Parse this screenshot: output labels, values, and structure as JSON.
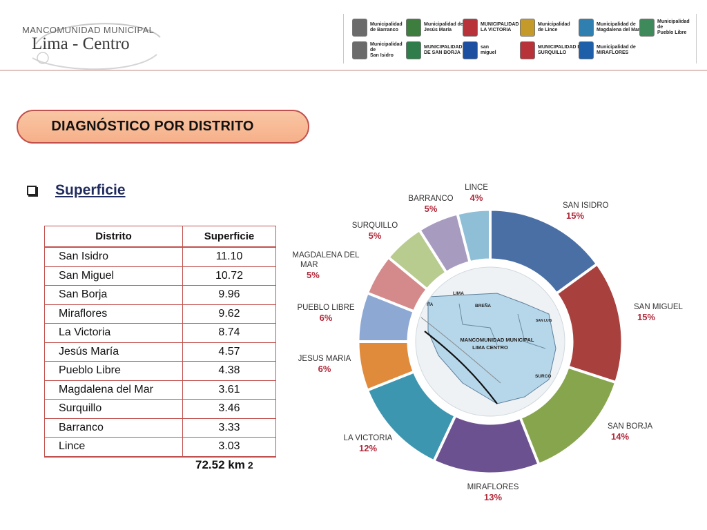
{
  "header": {
    "org_line": "MANCOMUNIDAD MUNICIPAL",
    "city_line": "Lima - Centro",
    "municipalities": [
      {
        "text": "Municipalidad\nde Barranco",
        "color": "#6b6b6b"
      },
      {
        "text": "Municipalidad de\nJesús María",
        "color": "#3d7d3d"
      },
      {
        "text": "MUNICIPALIDAD DE\nLA VICTORIA",
        "color": "#b8323a"
      },
      {
        "text": "Municipalidad\nde Lince",
        "color": "#c49a2a"
      },
      {
        "text": "Municipalidad de\nMagdalena del Mar",
        "color": "#2f7fb0"
      },
      {
        "text": "Municipalidad de\nPueblo Libre",
        "color": "#3f8a5a"
      },
      {
        "text": "Municipalidad\nde\nSan Isidro",
        "color": "#6b6b6b"
      },
      {
        "text": "MUNICIPALIDAD\nDE SAN BORJA",
        "color": "#2e7d4a"
      },
      {
        "text": "san\nmiguel",
        "color": "#1d4fa0"
      },
      {
        "text": "MUNICIPALIDAD DE\nSURQUILLO",
        "color": "#b8323a"
      },
      {
        "text": "Municipalidad de\nMIRAFLORES",
        "color": "#1d5fa8"
      }
    ]
  },
  "section_heading": "DIAGNÓSTICO POR DISTRITO",
  "subsection_title": "Superficie",
  "table": {
    "headers": [
      "Distrito",
      "Superficie"
    ],
    "rows": [
      {
        "name": "San Isidro",
        "value": "11.10"
      },
      {
        "name": "San Miguel",
        "value": "10.72"
      },
      {
        "name": "San Borja",
        "value": "9.96"
      },
      {
        "name": "Miraflores",
        "value": "9.62"
      },
      {
        "name": "La Victoria",
        "value": "8.74"
      },
      {
        "name": "Jesús María",
        "value": "4.57"
      },
      {
        "name": "Pueblo Libre",
        "value": "4.38"
      },
      {
        "name": "Magdalena del Mar",
        "value": "3.61"
      },
      {
        "name": "Surquillo",
        "value": "3.46"
      },
      {
        "name": "Barranco",
        "value": "3.33"
      },
      {
        "name": "Lince",
        "value": "3.03"
      }
    ],
    "total_value": "72.52 km",
    "total_exp": "2"
  },
  "chart_data": {
    "type": "pie",
    "style": "exploded donut",
    "slices": [
      {
        "label": "SAN ISIDRO",
        "pct": "15%",
        "value": 15,
        "color": "#4a6fa5"
      },
      {
        "label": "SAN MIGUEL",
        "pct": "15%",
        "value": 15,
        "color": "#a8413e"
      },
      {
        "label": "SAN BORJA",
        "pct": "14%",
        "value": 14,
        "color": "#86a54c"
      },
      {
        "label": "MIRAFLORES",
        "pct": "13%",
        "value": 13,
        "color": "#6c5190"
      },
      {
        "label": "LA VICTORIA",
        "pct": "12%",
        "value": 12,
        "color": "#3d96b0"
      },
      {
        "label": "JESUS MARIA",
        "pct": "6%",
        "value": 6,
        "color": "#e08a3c"
      },
      {
        "label": "PUEBLO LIBRE",
        "pct": "6%",
        "value": 6,
        "color": "#8ea8d4"
      },
      {
        "label": "MAGDALENA DEL MAR",
        "pct": "5%",
        "value": 5,
        "color": "#d48a8a"
      },
      {
        "label": "SURQUILLO",
        "pct": "5%",
        "value": 5,
        "color": "#b7cc8e"
      },
      {
        "label": "BARRANCO",
        "pct": "5%",
        "value": 5,
        "color": "#a89bc0"
      },
      {
        "label": "LINCE",
        "pct": "4%",
        "value": 4,
        "color": "#8fbfd6"
      }
    ],
    "center_map": {
      "title_line1": "MANCOMUNIDAD MUNICIPAL",
      "title_line2": "LIMA  CENTRO",
      "labels": [
        "LIMA",
        "BREÑA",
        "SAN LUIS",
        "SURCO",
        "ITA"
      ]
    },
    "label_color": "#333333",
    "pct_color": "#b2283a"
  }
}
